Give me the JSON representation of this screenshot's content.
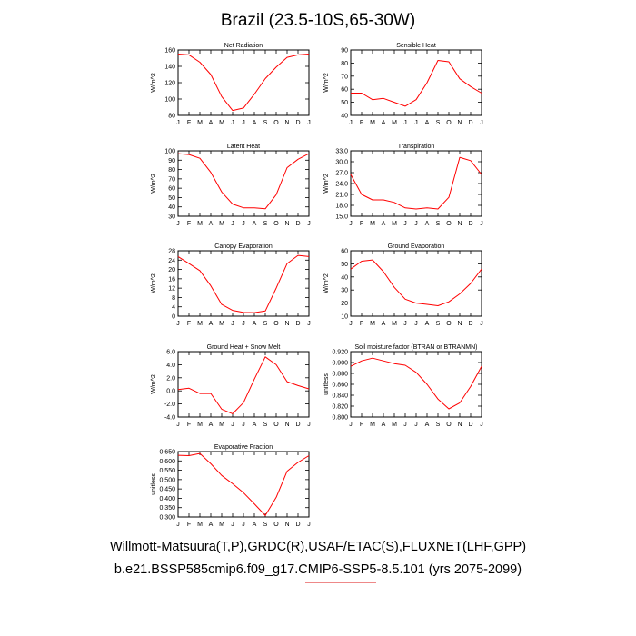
{
  "title": "Brazil (23.5-10S,65-30W)",
  "footer_line1": "Willmott-Matsuura(T,P),GRDC(R),USAF/ETAC(S),FLUXNET(LHF,GPP)",
  "footer_line2": "b.e21.BSSP585cmip6.f09_g17.CMIP6-SSP5-8.5.101 (yrs 2075-2099)",
  "colors": {
    "line": "#ff0000",
    "axis": "#000000"
  },
  "chart_data": [
    {
      "type": "line",
      "title": "Net Radiation",
      "ylabel": "W/m^2",
      "categories": [
        "J",
        "F",
        "M",
        "A",
        "M",
        "J",
        "J",
        "A",
        "S",
        "O",
        "N",
        "D",
        "J"
      ],
      "ylim": [
        80,
        160
      ],
      "yticks": [
        80,
        100,
        120,
        140,
        160
      ],
      "ytick_labels": [
        "80",
        "100",
        "120",
        "140",
        "160"
      ],
      "values": [
        155,
        154,
        145,
        130,
        103,
        86,
        89,
        106,
        125,
        139,
        151,
        154,
        155
      ]
    },
    {
      "type": "line",
      "title": "Sensible Heat",
      "ylabel": "W/m^2",
      "categories": [
        "J",
        "F",
        "M",
        "A",
        "M",
        "J",
        "J",
        "A",
        "S",
        "O",
        "N",
        "D",
        "J"
      ],
      "ylim": [
        40,
        90
      ],
      "yticks": [
        40,
        50,
        60,
        70,
        80,
        90
      ],
      "ytick_labels": [
        "40",
        "50",
        "60",
        "70",
        "80",
        "90"
      ],
      "values": [
        57,
        57,
        52,
        53,
        50,
        47,
        52,
        65,
        82,
        81,
        68,
        62,
        57
      ]
    },
    {
      "type": "line",
      "title": "Latent Heat",
      "ylabel": "W/m^2",
      "categories": [
        "J",
        "F",
        "M",
        "A",
        "M",
        "J",
        "J",
        "A",
        "S",
        "O",
        "N",
        "D",
        "J"
      ],
      "ylim": [
        30,
        100
      ],
      "yticks": [
        30,
        40,
        50,
        60,
        70,
        80,
        90,
        100
      ],
      "ytick_labels": [
        "30",
        "40",
        "50",
        "60",
        "70",
        "80",
        "90",
        "100"
      ],
      "values": [
        97,
        96,
        92,
        77,
        56,
        43,
        39,
        39,
        38,
        53,
        82,
        91,
        97
      ]
    },
    {
      "type": "line",
      "title": "Transpiration",
      "ylabel": "W/m^2",
      "categories": [
        "J",
        "F",
        "M",
        "A",
        "M",
        "J",
        "J",
        "A",
        "S",
        "O",
        "N",
        "D",
        "J"
      ],
      "ylim": [
        15,
        33
      ],
      "yticks": [
        15,
        18,
        21,
        24,
        27,
        30,
        33
      ],
      "ytick_labels": [
        "15.0",
        "18.0",
        "21.0",
        "24.0",
        "27.0",
        "30.0",
        "33.0"
      ],
      "values": [
        26.5,
        21.0,
        19.5,
        19.5,
        18.8,
        17.3,
        17.0,
        17.3,
        17.0,
        20.2,
        31.2,
        30.3,
        26.5
      ]
    },
    {
      "type": "line",
      "title": "Canopy Evaporation",
      "ylabel": "W/m^2",
      "categories": [
        "J",
        "F",
        "M",
        "A",
        "M",
        "J",
        "J",
        "A",
        "S",
        "O",
        "N",
        "D",
        "J"
      ],
      "ylim": [
        0,
        28
      ],
      "yticks": [
        0,
        4,
        8,
        12,
        16,
        20,
        24,
        28
      ],
      "ytick_labels": [
        "0",
        "4",
        "8",
        "12",
        "16",
        "20",
        "24",
        "28"
      ],
      "values": [
        25.5,
        22.5,
        19.5,
        13.0,
        5.0,
        2.5,
        1.6,
        1.5,
        2.2,
        12.0,
        22.5,
        26.0,
        25.5
      ]
    },
    {
      "type": "line",
      "title": "Ground Evaporation",
      "ylabel": "W/m^2",
      "categories": [
        "J",
        "F",
        "M",
        "A",
        "M",
        "J",
        "J",
        "A",
        "S",
        "O",
        "N",
        "D",
        "J"
      ],
      "ylim": [
        10,
        60
      ],
      "yticks": [
        10,
        20,
        30,
        40,
        50,
        60
      ],
      "ytick_labels": [
        "10",
        "20",
        "30",
        "40",
        "50",
        "60"
      ],
      "values": [
        46,
        52,
        53,
        44,
        32,
        23,
        20,
        19,
        18,
        21,
        27,
        35,
        46
      ]
    },
    {
      "type": "line",
      "title": "Ground Heat + Snow Melt",
      "ylabel": "W/m^2",
      "categories": [
        "J",
        "F",
        "M",
        "A",
        "M",
        "J",
        "J",
        "A",
        "S",
        "O",
        "N",
        "D",
        "J"
      ],
      "ylim": [
        -4,
        6
      ],
      "yticks": [
        -4,
        -2,
        0,
        2,
        4,
        6
      ],
      "ytick_labels": [
        "-4.0",
        "-2.0",
        "0.0",
        "2.0",
        "4.0",
        "6.0"
      ],
      "values": [
        0.2,
        0.4,
        -0.4,
        -0.4,
        -2.8,
        -3.5,
        -1.8,
        1.8,
        5.2,
        4.0,
        1.4,
        0.8,
        0.3
      ]
    },
    {
      "type": "line",
      "title": "Soil moisture factor (BTRAN or BTRANMN)",
      "ylabel": "unitless",
      "categories": [
        "J",
        "F",
        "M",
        "A",
        "M",
        "J",
        "J",
        "A",
        "S",
        "O",
        "N",
        "D",
        "J"
      ],
      "ylim": [
        0.8,
        0.92
      ],
      "yticks": [
        0.8,
        0.82,
        0.84,
        0.86,
        0.88,
        0.9,
        0.92
      ],
      "ytick_labels": [
        "0.800",
        "0.820",
        "0.840",
        "0.860",
        "0.880",
        "0.900",
        "0.920"
      ],
      "values": [
        0.893,
        0.903,
        0.908,
        0.903,
        0.898,
        0.895,
        0.882,
        0.86,
        0.833,
        0.815,
        0.826,
        0.856,
        0.893
      ]
    },
    {
      "type": "line",
      "title": "Evaporative Fraction",
      "ylabel": "unitless",
      "categories": [
        "J",
        "F",
        "M",
        "A",
        "M",
        "J",
        "J",
        "A",
        "S",
        "O",
        "N",
        "D",
        "J"
      ],
      "ylim": [
        0.3,
        0.65
      ],
      "yticks": [
        0.3,
        0.35,
        0.4,
        0.45,
        0.5,
        0.55,
        0.6,
        0.65
      ],
      "ytick_labels": [
        "0.300",
        "0.350",
        "0.400",
        "0.450",
        "0.500",
        "0.550",
        "0.600",
        "0.650"
      ],
      "values": [
        0.63,
        0.628,
        0.64,
        0.585,
        0.522,
        0.478,
        0.43,
        0.37,
        0.308,
        0.405,
        0.545,
        0.592,
        0.628
      ]
    }
  ]
}
